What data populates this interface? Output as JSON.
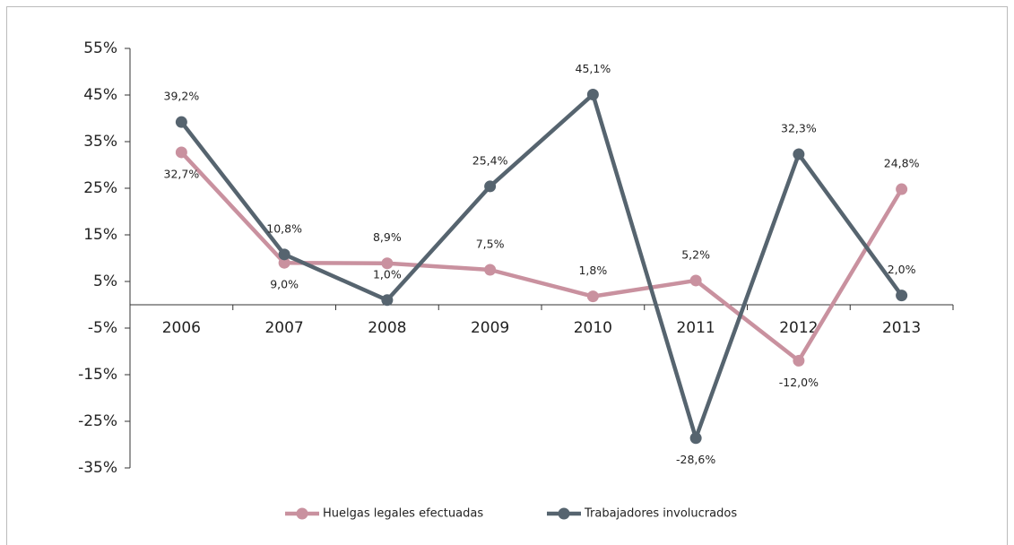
{
  "chart_data": {
    "type": "line",
    "categories": [
      "2006",
      "2007",
      "2008",
      "2009",
      "2010",
      "2011",
      "2012",
      "2013"
    ],
    "series": [
      {
        "name": "Huelgas legales efectuadas",
        "color": "#c9919f",
        "values": [
          32.7,
          9.0,
          8.9,
          7.5,
          1.8,
          5.2,
          -12.0,
          24.8
        ],
        "value_labels": [
          "32,7%",
          "9,0%",
          "8,9%",
          "7,5%",
          "1,8%",
          "5,2%",
          "-12,0%",
          "24,8%"
        ]
      },
      {
        "name": "Trabajadores involucrados",
        "color": "#56646f",
        "values": [
          39.2,
          10.8,
          1.0,
          25.4,
          45.1,
          -28.6,
          32.3,
          2.0
        ],
        "value_labels": [
          "39,2%",
          "10,8%",
          "1,0%",
          "25,4%",
          "45,1%",
          "-28,6%",
          "32,3%",
          "2,0%"
        ]
      }
    ],
    "ylim": [
      -35,
      55
    ],
    "yticks": [
      {
        "value": -35,
        "label": "-35%"
      },
      {
        "value": -25,
        "label": "-25%"
      },
      {
        "value": -15,
        "label": "-15%"
      },
      {
        "value": -5,
        "label": "-5%"
      },
      {
        "value": 5,
        "label": "5%"
      },
      {
        "value": 15,
        "label": "15%"
      },
      {
        "value": 25,
        "label": "25%"
      },
      {
        "value": 35,
        "label": "35%"
      },
      {
        "value": 45,
        "label": "45%"
      },
      {
        "value": 55,
        "label": "55%"
      }
    ],
    "legend": "bottom"
  }
}
